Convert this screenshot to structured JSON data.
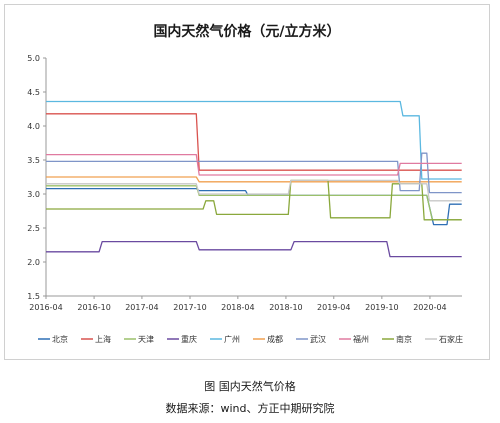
{
  "chart_data": {
    "type": "line",
    "title": "国内天然气价格（元/立方米）",
    "xlabel": "",
    "ylabel": "",
    "ylim": [
      1.5,
      5.0
    ],
    "yticks": [
      "1.5",
      "2.0",
      "2.5",
      "3.0",
      "3.5",
      "4.0",
      "4.5",
      "5.0"
    ],
    "xlim": [
      "2016-04-01",
      "2020-08-01"
    ],
    "xticks": [
      "2016-04",
      "2016-10",
      "2017-04",
      "2017-10",
      "2018-04",
      "2018-10",
      "2019-04",
      "2019-10",
      "2020-04"
    ],
    "grid": false,
    "legend": "bottom",
    "series": [
      {
        "name": "北京",
        "color": "#2e6fb5",
        "points": [
          [
            "2016-04-01",
            3.08
          ],
          [
            "2017-10-25",
            3.08
          ],
          [
            "2017-11-05",
            3.05
          ],
          [
            "2018-04-30",
            3.05
          ],
          [
            "2018-05-10",
            2.98
          ],
          [
            "2020-03-20",
            2.98
          ],
          [
            "2020-04-15",
            2.55
          ],
          [
            "2020-06-05",
            2.55
          ],
          [
            "2020-06-15",
            2.85
          ],
          [
            "2020-07-31",
            2.85
          ]
        ]
      },
      {
        "name": "上海",
        "color": "#d9534f",
        "points": [
          [
            "2016-04-01",
            4.18
          ],
          [
            "2017-10-25",
            4.18
          ],
          [
            "2017-11-05",
            3.35
          ],
          [
            "2020-07-31",
            3.35
          ]
        ]
      },
      {
        "name": "天津",
        "color": "#9bc06a",
        "points": [
          [
            "2016-04-01",
            3.12
          ],
          [
            "2017-10-25",
            3.12
          ],
          [
            "2017-11-05",
            2.98
          ],
          [
            "2020-03-20",
            2.98
          ],
          [
            "2020-04-10",
            2.62
          ],
          [
            "2020-07-31",
            2.62
          ]
        ]
      },
      {
        "name": "重庆",
        "color": "#6a4aa0",
        "points": [
          [
            "2016-04-01",
            2.15
          ],
          [
            "2016-10-20",
            2.15
          ],
          [
            "2016-11-01",
            2.3
          ],
          [
            "2017-10-25",
            2.3
          ],
          [
            "2017-11-05",
            2.18
          ],
          [
            "2018-10-20",
            2.18
          ],
          [
            "2018-11-01",
            2.3
          ],
          [
            "2019-10-20",
            2.3
          ],
          [
            "2019-11-01",
            2.08
          ],
          [
            "2020-07-31",
            2.08
          ]
        ]
      },
      {
        "name": "广州",
        "color": "#5bb8e0",
        "points": [
          [
            "2016-04-01",
            4.36
          ],
          [
            "2019-12-10",
            4.36
          ],
          [
            "2019-12-20",
            4.15
          ],
          [
            "2020-02-20",
            4.15
          ],
          [
            "2020-03-01",
            3.22
          ],
          [
            "2020-07-31",
            3.22
          ]
        ]
      },
      {
        "name": "成都",
        "color": "#f0a050",
        "points": [
          [
            "2016-04-01",
            3.25
          ],
          [
            "2017-10-25",
            3.25
          ],
          [
            "2017-11-05",
            3.18
          ],
          [
            "2020-07-31",
            3.18
          ]
        ]
      },
      {
        "name": "武汉",
        "color": "#7f95c8",
        "points": [
          [
            "2016-04-01",
            3.48
          ],
          [
            "2017-10-25",
            3.48
          ],
          [
            "2017-11-05",
            3.48
          ],
          [
            "2019-11-30",
            3.48
          ],
          [
            "2019-12-10",
            3.05
          ],
          [
            "2020-02-20",
            3.05
          ],
          [
            "2020-03-01",
            3.6
          ],
          [
            "2020-03-20",
            3.6
          ],
          [
            "2020-03-30",
            3.02
          ],
          [
            "2020-07-31",
            3.02
          ]
        ]
      },
      {
        "name": "福州",
        "color": "#e07aa0",
        "points": [
          [
            "2016-04-01",
            3.58
          ],
          [
            "2017-10-25",
            3.58
          ],
          [
            "2017-11-05",
            3.28
          ],
          [
            "2019-11-30",
            3.28
          ],
          [
            "2019-12-10",
            3.45
          ],
          [
            "2020-07-31",
            3.45
          ]
        ]
      },
      {
        "name": "南京",
        "color": "#8aa83c",
        "points": [
          [
            "2016-04-01",
            2.78
          ],
          [
            "2017-11-20",
            2.78
          ],
          [
            "2017-11-30",
            2.9
          ],
          [
            "2017-12-30",
            2.9
          ],
          [
            "2018-01-10",
            2.7
          ],
          [
            "2018-10-10",
            2.7
          ],
          [
            "2018-10-20",
            3.2
          ],
          [
            "2019-03-10",
            3.2
          ],
          [
            "2019-03-20",
            2.65
          ],
          [
            "2019-11-01",
            2.65
          ],
          [
            "2019-11-10",
            3.15
          ],
          [
            "2020-03-01",
            3.15
          ],
          [
            "2020-03-10",
            2.62
          ],
          [
            "2020-07-31",
            2.62
          ]
        ]
      },
      {
        "name": "石家庄",
        "color": "#c8c8c8",
        "points": [
          [
            "2016-04-01",
            3.15
          ],
          [
            "2017-10-25",
            3.15
          ],
          [
            "2017-11-05",
            3.0
          ],
          [
            "2018-10-10",
            3.0
          ],
          [
            "2018-10-20",
            3.2
          ],
          [
            "2019-11-30",
            3.2
          ],
          [
            "2019-12-10",
            3.15
          ],
          [
            "2020-03-20",
            3.15
          ],
          [
            "2020-03-30",
            2.9
          ],
          [
            "2020-07-31",
            2.9
          ]
        ]
      }
    ]
  },
  "caption": {
    "figure": "图    国内天然气价格",
    "source": "数据来源：wind、方正中期研究院"
  }
}
